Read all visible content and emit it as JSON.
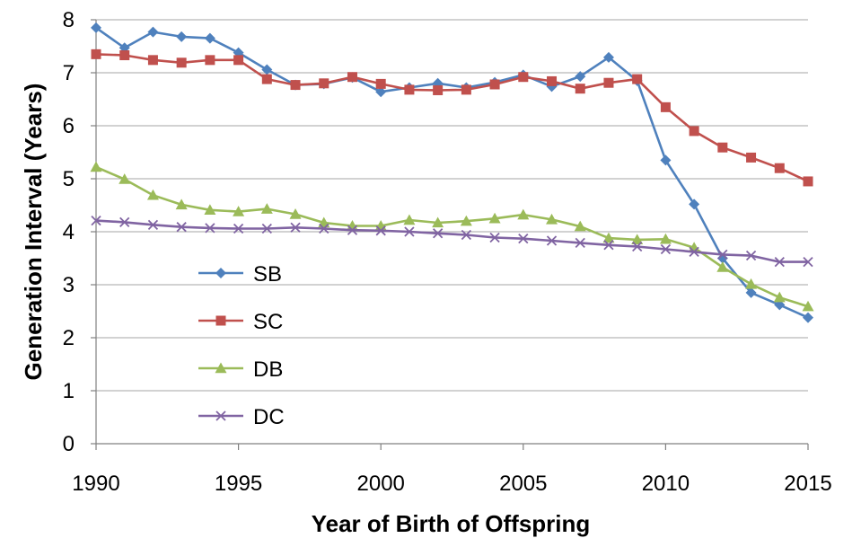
{
  "chart_data": {
    "type": "line",
    "title": "",
    "xlabel": "Year of Birth of Offspring",
    "ylabel": "Generation Interval (Years)",
    "xlim": [
      1990,
      2015
    ],
    "ylim": [
      0,
      8
    ],
    "x_ticks": [
      1990,
      1995,
      2000,
      2005,
      2010,
      2015
    ],
    "y_ticks": [
      0,
      1,
      2,
      3,
      4,
      5,
      6,
      7,
      8
    ],
    "grid": true,
    "legend_position": "lower-left",
    "x": [
      1990,
      1991,
      1992,
      1993,
      1994,
      1995,
      1996,
      1997,
      1998,
      1999,
      2000,
      2001,
      2002,
      2003,
      2004,
      2005,
      2006,
      2007,
      2008,
      2009,
      2010,
      2011,
      2012,
      2013,
      2014,
      2015
    ],
    "series": [
      {
        "name": "SB",
        "color": "#4f81bd",
        "marker": "diamond",
        "values": [
          7.85,
          7.47,
          7.77,
          7.68,
          7.65,
          7.38,
          7.06,
          6.77,
          6.79,
          6.91,
          6.64,
          6.72,
          6.8,
          6.72,
          6.82,
          6.96,
          6.74,
          6.93,
          7.29,
          6.85,
          5.35,
          4.52,
          3.5,
          2.85,
          2.62,
          2.38
        ]
      },
      {
        "name": "SC",
        "color": "#c0504d",
        "marker": "square",
        "values": [
          7.35,
          7.33,
          7.24,
          7.19,
          7.24,
          7.24,
          6.88,
          6.77,
          6.8,
          6.92,
          6.79,
          6.68,
          6.67,
          6.68,
          6.78,
          6.92,
          6.84,
          6.7,
          6.81,
          6.88,
          6.35,
          5.9,
          5.59,
          5.4,
          5.2,
          4.95
        ]
      },
      {
        "name": "DB",
        "color": "#9bbb59",
        "marker": "triangle",
        "values": [
          5.22,
          4.99,
          4.69,
          4.51,
          4.41,
          4.38,
          4.43,
          4.33,
          4.17,
          4.11,
          4.11,
          4.22,
          4.17,
          4.2,
          4.25,
          4.32,
          4.23,
          4.1,
          3.88,
          3.85,
          3.86,
          3.7,
          3.33,
          3.01,
          2.76,
          2.59
        ]
      },
      {
        "name": "DC",
        "color": "#8064a2",
        "marker": "x",
        "values": [
          4.21,
          4.18,
          4.13,
          4.09,
          4.07,
          4.06,
          4.06,
          4.08,
          4.06,
          4.03,
          4.02,
          4.0,
          3.97,
          3.94,
          3.89,
          3.87,
          3.83,
          3.79,
          3.75,
          3.72,
          3.67,
          3.62,
          3.57,
          3.55,
          3.43,
          3.43
        ]
      }
    ]
  }
}
